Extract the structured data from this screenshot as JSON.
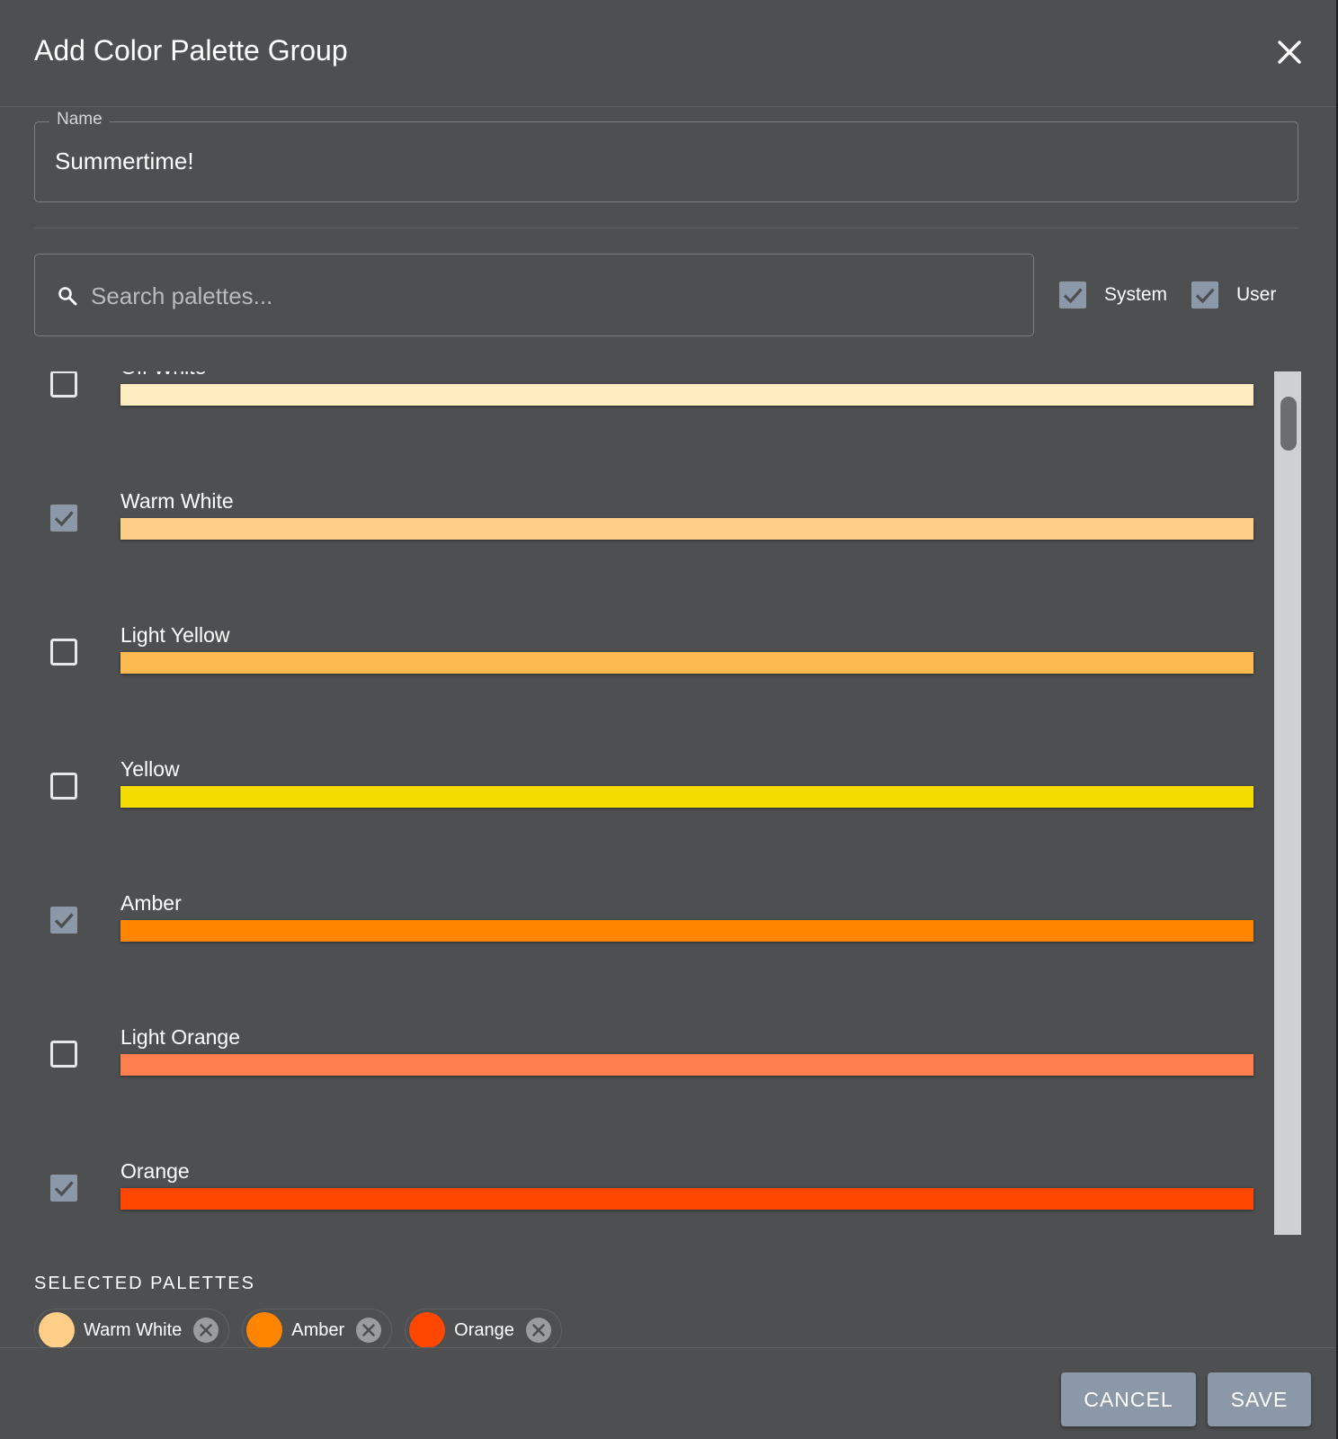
{
  "dialog": {
    "title": "Add Color Palette Group"
  },
  "name_field": {
    "label": "Name",
    "value": "Summertime!"
  },
  "search": {
    "placeholder": "Search palettes..."
  },
  "filters": [
    {
      "label": "System",
      "checked": true
    },
    {
      "label": "User",
      "checked": true
    }
  ],
  "palettes": [
    {
      "name": "Off White",
      "color": "#ffecc0",
      "checked": false
    },
    {
      "name": "Warm White",
      "color": "#ffce89",
      "checked": true
    },
    {
      "name": "Light Yellow",
      "color": "#fdbb4f",
      "checked": false
    },
    {
      "name": "Yellow",
      "color": "#f4db00",
      "checked": false
    },
    {
      "name": "Amber",
      "color": "#ff8500",
      "checked": true
    },
    {
      "name": "Light Orange",
      "color": "#ff7e50",
      "checked": false
    },
    {
      "name": "Orange",
      "color": "#ff4700",
      "checked": true
    }
  ],
  "selected": {
    "heading": "SELECTED PALETTES",
    "chips": [
      {
        "label": "Warm White",
        "color": "#ffce89"
      },
      {
        "label": "Amber",
        "color": "#ff8500"
      },
      {
        "label": "Orange",
        "color": "#ff4700"
      }
    ]
  },
  "footer": {
    "cancel_label": "CANCEL",
    "save_label": "SAVE"
  },
  "colors": {
    "checkbox_checked": "#8a98a8",
    "checkbox_unchecked": "#e6e7e8"
  }
}
